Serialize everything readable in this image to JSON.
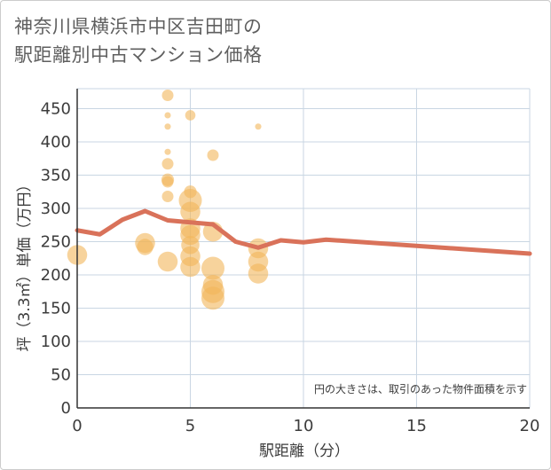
{
  "chart_data": {
    "type": "scatter",
    "title_lines": [
      "神奈川県横浜市中区吉田町の",
      "駅距離別中古マンション価格"
    ],
    "xlabel": "駅距離（分）",
    "ylabel": "坪（3.3㎡）単価（万円）",
    "xlim": [
      0,
      20
    ],
    "ylim": [
      0,
      480
    ],
    "xticks": [
      0,
      5,
      10,
      15,
      20
    ],
    "yticks": [
      0,
      50,
      100,
      150,
      200,
      250,
      300,
      350,
      400,
      450
    ],
    "note": "円の大きさは、取引のあった物件面積を示す",
    "colors": {
      "bubble": "#f2b65a",
      "line": "#d9725a",
      "grid": "#c9d6e3"
    },
    "bubbles": [
      {
        "x": 0,
        "y": 230,
        "size": 3
      },
      {
        "x": 3,
        "y": 248,
        "size": 3
      },
      {
        "x": 3,
        "y": 242,
        "size": 2
      },
      {
        "x": 4,
        "y": 470,
        "size": 1
      },
      {
        "x": 4,
        "y": 440,
        "size": 0.3
      },
      {
        "x": 4,
        "y": 423,
        "size": 0.3
      },
      {
        "x": 4,
        "y": 385,
        "size": 0.3
      },
      {
        "x": 4,
        "y": 367,
        "size": 1
      },
      {
        "x": 4,
        "y": 343,
        "size": 1.2
      },
      {
        "x": 4,
        "y": 340,
        "size": 1
      },
      {
        "x": 4,
        "y": 318,
        "size": 1
      },
      {
        "x": 4,
        "y": 220,
        "size": 3
      },
      {
        "x": 5,
        "y": 440,
        "size": 0.8
      },
      {
        "x": 5,
        "y": 325,
        "size": 1.2
      },
      {
        "x": 5,
        "y": 312,
        "size": 4
      },
      {
        "x": 5,
        "y": 295,
        "size": 3
      },
      {
        "x": 5,
        "y": 270,
        "size": 3
      },
      {
        "x": 5,
        "y": 260,
        "size": 3
      },
      {
        "x": 5,
        "y": 245,
        "size": 2.5
      },
      {
        "x": 5,
        "y": 228,
        "size": 3
      },
      {
        "x": 5,
        "y": 212,
        "size": 3
      },
      {
        "x": 6,
        "y": 380,
        "size": 1
      },
      {
        "x": 6,
        "y": 265,
        "size": 3
      },
      {
        "x": 6,
        "y": 210,
        "size": 4
      },
      {
        "x": 6,
        "y": 185,
        "size": 3
      },
      {
        "x": 6,
        "y": 175,
        "size": 4
      },
      {
        "x": 6,
        "y": 165,
        "size": 4
      },
      {
        "x": 8,
        "y": 423,
        "size": 0.3
      },
      {
        "x": 8,
        "y": 240,
        "size": 3
      },
      {
        "x": 8,
        "y": 220,
        "size": 3
      },
      {
        "x": 8,
        "y": 202,
        "size": 3
      }
    ],
    "line": {
      "x": [
        0,
        1,
        2,
        3,
        4,
        5,
        6,
        7,
        8,
        9,
        10,
        11,
        20
      ],
      "y": [
        267,
        261,
        283,
        296,
        282,
        279,
        276,
        250,
        241,
        252,
        249,
        253,
        232
      ]
    }
  }
}
